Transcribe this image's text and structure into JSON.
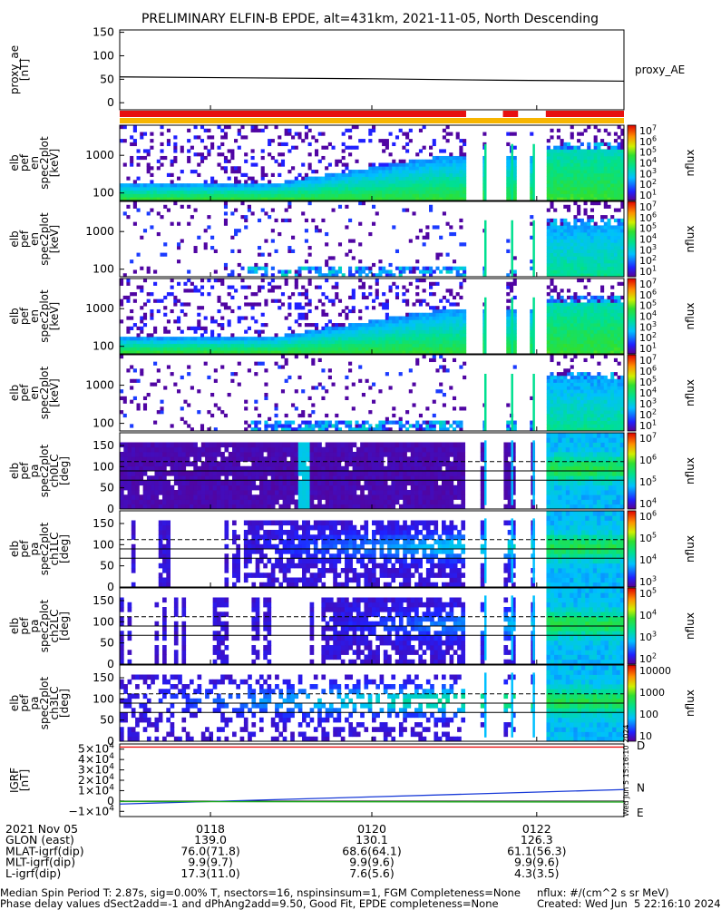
{
  "title": "PRELIMINARY ELFIN-B EPDE, alt=431km, 2021-11-05, North Descending",
  "colors": {
    "ae_line": "#000000",
    "bar_red": "#e81010",
    "bar_orange": "#f7b500",
    "n_line": "#1a3cd8",
    "e_line": "#1aa81a"
  },
  "chart_data": [
    {
      "type": "line",
      "panel": "proxy_ae",
      "ylabel": [
        "proxy_ae",
        "[nT]"
      ],
      "yticks": [
        "150",
        "100",
        "50",
        "0"
      ],
      "ylim": [
        -15,
        155
      ],
      "legend": "proxy_AE",
      "x": [
        0,
        0.25,
        0.5,
        0.75,
        1.0
      ],
      "y": [
        55,
        53,
        51,
        48,
        46
      ]
    },
    {
      "type": "heatmap",
      "panel": "spec2plot_1",
      "ylabel": [
        "elb",
        "pef",
        "en",
        "spec2plot",
        "[keV]"
      ],
      "yticks": [
        "1000",
        "100"
      ],
      "ylog": true,
      "colorbar_ticks": [
        "10^7",
        "10^6",
        "10^5",
        "10^4",
        "10^3",
        "10^2",
        "10^1"
      ],
      "zlabel": "nflux"
    },
    {
      "type": "heatmap",
      "panel": "spec2plot_2",
      "ylabel": [
        "elb",
        "pef",
        "en",
        "spec2plot",
        "[keV]"
      ],
      "yticks": [
        "1000",
        "100"
      ],
      "ylog": true,
      "colorbar_ticks": [
        "10^7",
        "10^6",
        "10^5",
        "10^4",
        "10^3",
        "10^2",
        "10^1"
      ],
      "zlabel": "nflux"
    },
    {
      "type": "heatmap",
      "panel": "spec2plot_3",
      "ylabel": [
        "elb",
        "pef",
        "en",
        "spec2plot",
        "[keV]"
      ],
      "yticks": [
        "1000",
        "100"
      ],
      "ylog": true,
      "colorbar_ticks": [
        "10^7",
        "10^6",
        "10^5",
        "10^4",
        "10^3",
        "10^2",
        "10^1"
      ],
      "zlabel": "nflux"
    },
    {
      "type": "heatmap",
      "panel": "spec2plot_4",
      "ylabel": [
        "elb",
        "pef",
        "en",
        "spec2plot",
        "[keV]"
      ],
      "yticks": [
        "1000",
        "100"
      ],
      "ylog": true,
      "colorbar_ticks": [
        "10^7",
        "10^6",
        "10^5",
        "10^4",
        "10^3",
        "10^2",
        "10^1"
      ],
      "zlabel": "nflux"
    },
    {
      "type": "heatmap",
      "panel": "ch0LC",
      "ylabel": [
        "elb",
        "pef",
        "pa",
        "spec2plot",
        "ch0LC",
        "[deg]"
      ],
      "yticks": [
        "150",
        "100",
        "50",
        "0"
      ],
      "ylim": [
        0,
        180
      ],
      "colorbar_ticks": [
        "10^7",
        "10^6",
        "10^5",
        "10^4"
      ],
      "zlabel": "nflux"
    },
    {
      "type": "heatmap",
      "panel": "ch1LC",
      "ylabel": [
        "elb",
        "pef",
        "pa",
        "spec2plot",
        "ch1LC",
        "[deg]"
      ],
      "yticks": [
        "150",
        "100",
        "50",
        "0"
      ],
      "ylim": [
        0,
        180
      ],
      "colorbar_ticks": [
        "10^6",
        "10^5",
        "10^4",
        "10^3"
      ],
      "zlabel": "nflux"
    },
    {
      "type": "heatmap",
      "panel": "ch2LC",
      "ylabel": [
        "elb",
        "pef",
        "pa",
        "spec2plot",
        "ch2LC",
        "[deg]"
      ],
      "yticks": [
        "150",
        "100",
        "50",
        "0"
      ],
      "ylim": [
        0,
        180
      ],
      "colorbar_ticks": [
        "10^5",
        "10^4",
        "10^3",
        "10^2"
      ],
      "zlabel": "nflux"
    },
    {
      "type": "heatmap",
      "panel": "ch3LC",
      "ylabel": [
        "elb",
        "pef",
        "pa",
        "spec2plot",
        "ch3LC",
        "[deg]"
      ],
      "yticks": [
        "150",
        "100",
        "50",
        "0"
      ],
      "ylim": [
        0,
        180
      ],
      "colorbar_ticks": [
        "10000",
        "1000",
        "100",
        "10"
      ],
      "zlabel": "nflux"
    },
    {
      "type": "line",
      "panel": "igrf",
      "ylabel": [
        "IGRF",
        "[nT]"
      ],
      "yticks": [
        "5×10^4",
        "4×10^4",
        "3×10^4",
        "2×10^4",
        "1×10^4",
        "0",
        "−1×10^4"
      ],
      "ylim": [
        -15000,
        55000
      ],
      "series": [
        {
          "name": "N",
          "x": [
            0,
            1
          ],
          "y": [
            -3000,
            11000
          ]
        },
        {
          "name": "E",
          "x": [
            0,
            1
          ],
          "y": [
            -500,
            -1000
          ]
        },
        {
          "name": "D",
          "x": [
            0,
            1
          ],
          "y": [
            52000,
            52000
          ]
        }
      ]
    }
  ],
  "xaxis": {
    "ticks": [
      "0118",
      "0120",
      "0122"
    ],
    "rows": [
      {
        "label": "2021 Nov 05",
        "values": [
          "0118",
          "0120",
          "0122"
        ]
      },
      {
        "label": "GLON (east)",
        "values": [
          "139.0",
          "130.1",
          "126.3"
        ]
      },
      {
        "label": "MLAT-igrf(dip)",
        "values": [
          "76.0(71.8)",
          "68.6(64.1)",
          "61.1(56.3)"
        ]
      },
      {
        "label": "MLT-igrf(dip)",
        "values": [
          "9.9(9.7)",
          "9.9(9.6)",
          "9.9(9.6)"
        ]
      },
      {
        "label": "L-igrf(dip)",
        "values": [
          "17.3(11.0)",
          "7.6(5.6)",
          "4.3(3.5)"
        ]
      }
    ]
  },
  "footer": {
    "line1": "Median Spin Period T: 2.87s, sig=0.00% T, nsectors=16, nspinsinsum=1, FGM Completeness=None",
    "line2": "Phase delay values dSect2add=-1 and dPhAng2add=9.50, Good Fit, EPDE completeness=None",
    "units": "nflux: #/(cm^2 s sr MeV)",
    "created": "Created: Wed Jun  5 22:16:10 2024"
  },
  "side_stamp": "Wed Jun  5 15:16:10 2024"
}
